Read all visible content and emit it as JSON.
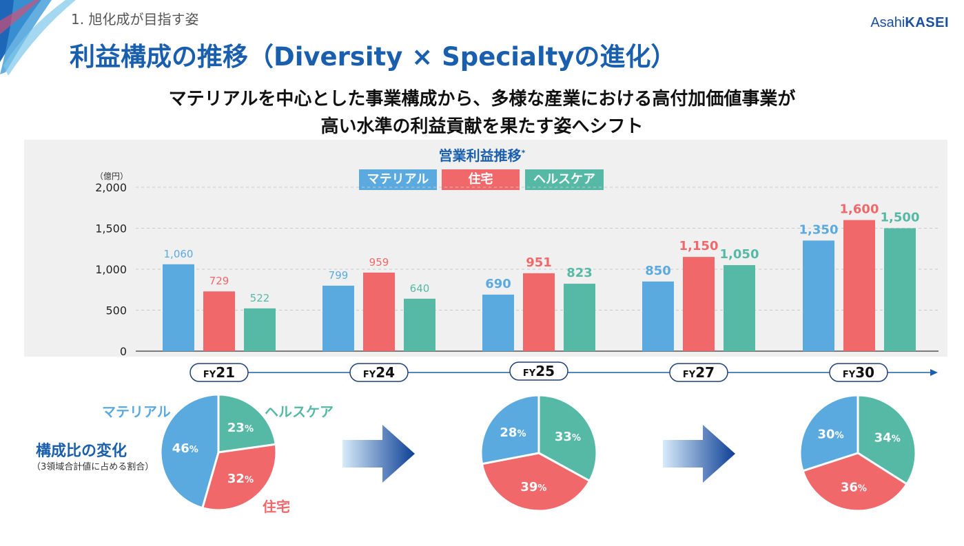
{
  "header": {
    "section": "1. 旭化成が目指す姿",
    "title": "利益構成の推移（Diversity × Specialtyの進化）",
    "logo_text_1": "Asahi",
    "logo_text_2": "KASEI",
    "subtitle_1": "マテリアルを中心とした事業構成から、多様な産業における高付加価値事業が",
    "subtitle_2": "高い水準の利益貢献を果たす姿へシフト"
  },
  "colors": {
    "material": "#5aaae0",
    "housing": "#f0686a",
    "health": "#55b9a5",
    "title_blue": "#1a5fae",
    "timeline": "#1a5fae"
  },
  "chart_data": {
    "type": "bar",
    "title": "営業利益推移",
    "title_mark": "*",
    "unit": "（億円）",
    "categories": [
      "FY21",
      "FY24",
      "FY25",
      "FY27",
      "FY30"
    ],
    "category_prefix": [
      "FY",
      "FY",
      "FY",
      "FY",
      "FY"
    ],
    "category_number": [
      "21",
      "24",
      "25",
      "27",
      "30"
    ],
    "ylim": [
      0,
      2000
    ],
    "yticks": [
      "0",
      "500",
      "1,000",
      "1,500",
      "2,000"
    ],
    "ytick_values": [
      0,
      500,
      1000,
      1500,
      2000
    ],
    "grid": true,
    "legend_position": "top-center",
    "series": [
      {
        "name": "マテリアル",
        "values": [
          1060,
          799,
          690,
          850,
          1350
        ],
        "labels": [
          "1,060",
          "799",
          "690",
          "850",
          "1,350"
        ]
      },
      {
        "name": "住宅",
        "values": [
          729,
          959,
          951,
          1150,
          1600
        ],
        "labels": [
          "729",
          "959",
          "951",
          "1,150",
          "1,600"
        ]
      },
      {
        "name": "ヘルスケア",
        "values": [
          522,
          640,
          823,
          1050,
          1500
        ],
        "labels": [
          "522",
          "640",
          "823",
          "1,050",
          "1,500"
        ]
      }
    ],
    "label_style": [
      "light",
      "light",
      "bold",
      "bold",
      "bold"
    ]
  },
  "composition": {
    "title": "構成比の変化",
    "note": "（3領域合計値に占める割合）",
    "label_material": "マテリアル",
    "label_health": "ヘルスケア",
    "label_housing": "住宅",
    "pies": [
      {
        "period": "FY21",
        "material": 46,
        "housing": 32,
        "health": 23
      },
      {
        "period": "FY25",
        "material": 28,
        "housing": 39,
        "health": 33
      },
      {
        "period": "FY30",
        "material": 30,
        "housing": 36,
        "health": 34
      }
    ],
    "pct_sign": "%"
  }
}
